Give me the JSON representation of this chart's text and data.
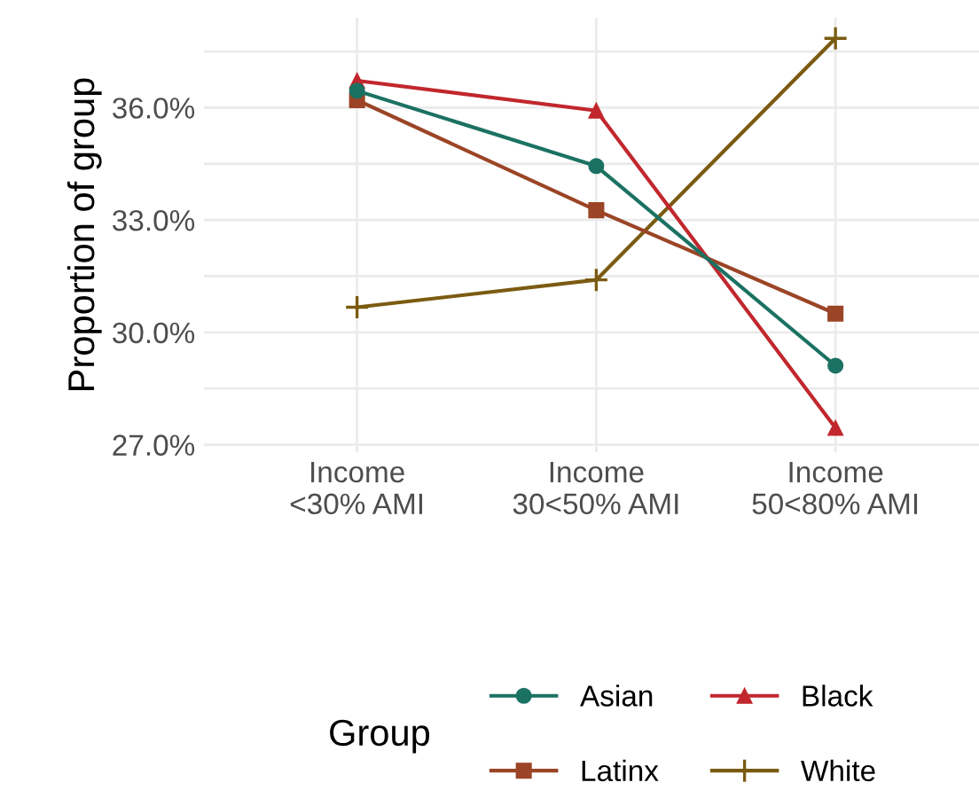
{
  "chart_data": {
    "type": "line",
    "ylabel": "Proportion of group",
    "legend_title": "Group",
    "categories": [
      "Income\n<30% AMI",
      "Income\n30<50% AMI",
      "Income\n50<80% AMI"
    ],
    "series": [
      {
        "name": "Asian",
        "color": "#1b7262",
        "marker": "circle",
        "values": [
          36.45,
          34.44,
          29.11
        ]
      },
      {
        "name": "Black",
        "color": "#c1272d",
        "marker": "triangle",
        "values": [
          36.72,
          35.92,
          27.45
        ]
      },
      {
        "name": "Latinx",
        "color": "#9b4526",
        "marker": "square",
        "values": [
          36.2,
          33.26,
          30.5
        ]
      },
      {
        "name": "White",
        "color": "#7b5b12",
        "marker": "cross",
        "values": [
          30.67,
          31.4,
          37.85
        ]
      }
    ],
    "ylim": [
      26.8,
      38.4
    ],
    "yticks": [
      {
        "value": 27,
        "label": "27.0%"
      },
      {
        "value": 28.5,
        "label": null
      },
      {
        "value": 30,
        "label": "30.0%"
      },
      {
        "value": 31.5,
        "label": null
      },
      {
        "value": 33,
        "label": "33.0%"
      },
      {
        "value": 34.5,
        "label": null
      },
      {
        "value": 36,
        "label": "36.0%"
      },
      {
        "value": 37.5,
        "label": null
      }
    ],
    "grid": true,
    "legend": "bottom",
    "line_style": "solid"
  }
}
